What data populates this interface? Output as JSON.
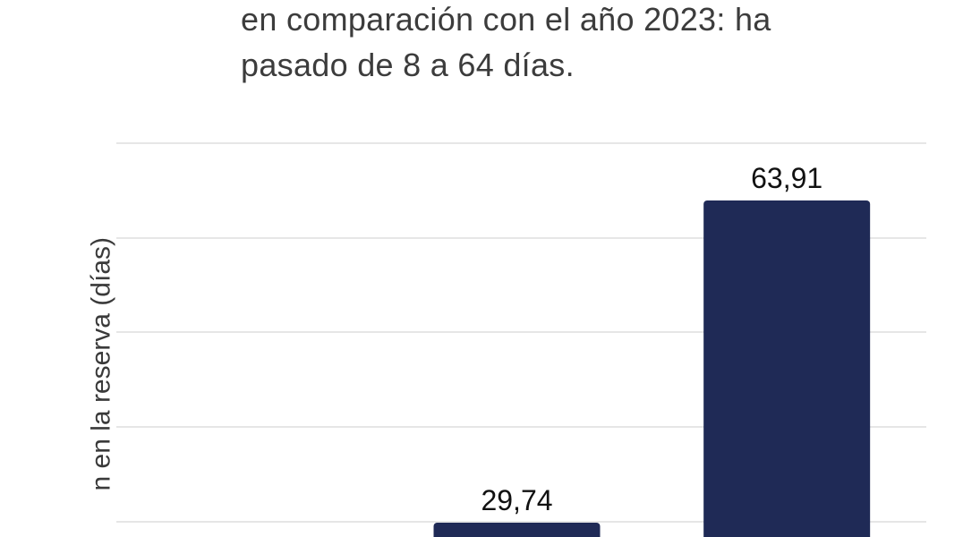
{
  "title_lines": [
    "en comparación con el año 2023: ha",
    "pasado de 8 a 64 días."
  ],
  "chart_data": {
    "type": "bar",
    "categories": [
      "",
      "",
      ""
    ],
    "values": [
      null,
      29.74,
      63.91
    ],
    "value_labels": [
      "",
      "29,74",
      "63,91"
    ],
    "ylabel": "n en la reserva (días)",
    "ylim": [
      25,
      70
    ],
    "grid": true,
    "colors": {
      "bar": "#1f2a56",
      "grid": "#e6e6e6"
    }
  }
}
